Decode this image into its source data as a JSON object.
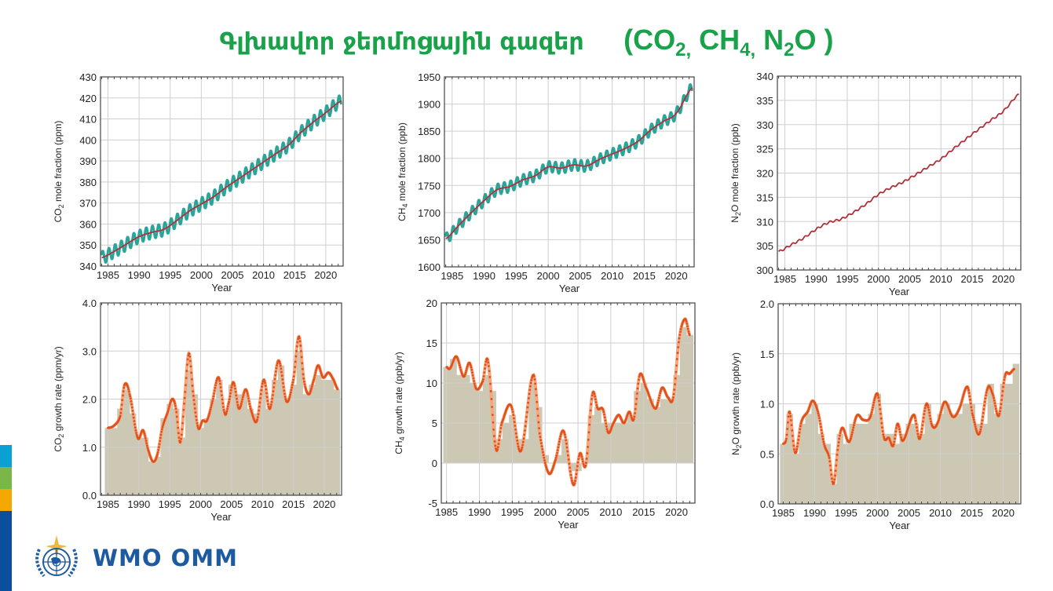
{
  "header": {
    "title_armenian": "Գլխավոր ջերմոցային գազեր",
    "formula_parts": [
      {
        "base": "(CO",
        "sub": "2,"
      },
      {
        "base": " CH",
        "sub": "4,"
      },
      {
        "base": " N",
        "sub": "2"
      },
      {
        "base": "O )",
        "sub": ""
      }
    ],
    "color": "#1aa24b"
  },
  "logo": {
    "text": "WMO OMM",
    "icon": "wmo-emblem-icon",
    "color": "#1e5aa0"
  },
  "side_stripes": [
    "#0aa0d2",
    "#7ab648",
    "#f5a800",
    "#0b4f9c"
  ],
  "colors": {
    "mole_points": "#2aa59a",
    "trend_line": "#b0303a",
    "growth_bars": "#ccc8b4",
    "growth_curve": "#e0501c"
  },
  "chart_data": [
    {
      "id": "co2-mole",
      "type": "line",
      "title": "",
      "xlabel": "Year",
      "ylabel": "CO2 mole fraction (ppm)",
      "ylabel_base": "CO",
      "ylabel_sub": "2",
      "ylabel_rest": " mole fraction (ppm)",
      "xlim": [
        1983.8,
        2022.8
      ],
      "ylim": [
        340,
        430
      ],
      "xticks": [
        1985,
        1990,
        1995,
        2000,
        2005,
        2010,
        2015,
        2020
      ],
      "yticks": [
        340,
        350,
        360,
        370,
        380,
        390,
        400,
        410,
        420,
        430
      ],
      "grid": true,
      "seasonal_amplitude": 3,
      "x": [
        1984,
        1986,
        1988,
        1990,
        1992,
        1994,
        1996,
        1998,
        2000,
        2002,
        2004,
        2006,
        2008,
        2010,
        2012,
        2014,
        2016,
        2018,
        2020,
        2022.5
      ],
      "values": [
        344.0,
        347.0,
        350.5,
        354.0,
        356.0,
        357.5,
        361.5,
        366.0,
        369.5,
        373.0,
        377.5,
        381.5,
        385.5,
        389.5,
        393.5,
        397.5,
        403.5,
        408.5,
        413.0,
        418.5
      ]
    },
    {
      "id": "ch4-mole",
      "type": "line",
      "title": "",
      "xlabel": "Year",
      "ylabel": "CH4 mole fraction (ppb)",
      "ylabel_base": "CH",
      "ylabel_sub": "4",
      "ylabel_rest": " mole fraction (ppb)",
      "xlim": [
        1983.8,
        2022.8
      ],
      "ylim": [
        1600,
        1950
      ],
      "xticks": [
        1985,
        1990,
        1995,
        2000,
        2005,
        2010,
        2015,
        2020
      ],
      "yticks": [
        1600,
        1650,
        1700,
        1750,
        1800,
        1850,
        1900,
        1950
      ],
      "grid": true,
      "seasonal_amplitude": 10,
      "x": [
        1984,
        1986,
        1988,
        1990,
        1992,
        1994,
        1996,
        1998,
        2000,
        2002,
        2004,
        2006,
        2008,
        2010,
        2012,
        2014,
        2016,
        2018,
        2020,
        2022.5
      ],
      "values": [
        1652,
        1676,
        1700,
        1722,
        1742,
        1748,
        1760,
        1768,
        1784,
        1782,
        1788,
        1786,
        1798,
        1808,
        1818,
        1831,
        1852,
        1868,
        1883,
        1930
      ]
    },
    {
      "id": "n2o-mole",
      "type": "line",
      "title": "",
      "xlabel": "Year",
      "ylabel": "N2O mole fraction (ppb)",
      "ylabel_base": "N",
      "ylabel_sub": "2",
      "ylabel_rest": "O mole fraction (ppb)",
      "xlim": [
        1983.8,
        2022.8
      ],
      "ylim": [
        300,
        340
      ],
      "xticks": [
        1985,
        1990,
        1995,
        2000,
        2005,
        2010,
        2015,
        2020
      ],
      "yticks": [
        300,
        305,
        310,
        315,
        320,
        325,
        330,
        335,
        340
      ],
      "grid": true,
      "seasonal_amplitude": 0.2,
      "x": [
        1984,
        1986,
        1988,
        1990,
        1992,
        1994,
        1996,
        1998,
        2000,
        2002,
        2004,
        2006,
        2008,
        2010,
        2012,
        2014,
        2016,
        2018,
        2020,
        2022.5
      ],
      "values": [
        303.8,
        305.2,
        306.6,
        308.4,
        309.8,
        310.5,
        311.9,
        313.6,
        315.6,
        317.0,
        318.2,
        319.7,
        321.3,
        322.9,
        325.0,
        327.0,
        329.0,
        330.9,
        332.8,
        336.2
      ]
    },
    {
      "id": "co2-growth",
      "type": "bar",
      "title": "",
      "xlabel": "Year",
      "ylabel": "CO2 growth rate (ppm/yr)",
      "ylabel_base": "CO",
      "ylabel_sub": "2",
      "ylabel_rest": " growth rate (ppm/yr)",
      "xlim": [
        1983.8,
        2022.8
      ],
      "ylim": [
        0,
        4
      ],
      "xticks": [
        1985,
        1990,
        1995,
        2000,
        2005,
        2010,
        2015,
        2020
      ],
      "yticks": [
        0.0,
        1.0,
        2.0,
        3.0,
        4.0
      ],
      "ytick_labels": [
        "0.0",
        "1.0",
        "2.0",
        "3.0",
        "4.0"
      ],
      "grid": true,
      "categories": [
        1985,
        1986,
        1987,
        1988,
        1989,
        1990,
        1991,
        1992,
        1993,
        1994,
        1995,
        1996,
        1997,
        1998,
        1999,
        2000,
        2001,
        2002,
        2003,
        2004,
        2005,
        2006,
        2007,
        2008,
        2009,
        2010,
        2011,
        2012,
        2013,
        2014,
        2015,
        2016,
        2017,
        2018,
        2019,
        2020,
        2021,
        2022
      ],
      "values": [
        1.4,
        1.4,
        1.8,
        2.2,
        1.7,
        1.2,
        1.2,
        0.7,
        0.8,
        1.6,
        1.9,
        1.8,
        1.2,
        2.6,
        2.1,
        1.4,
        1.6,
        2.0,
        2.4,
        1.7,
        2.3,
        2.1,
        2.1,
        1.8,
        1.7,
        2.2,
        1.8,
        2.4,
        2.7,
        2.0,
        2.3,
        3.0,
        2.1,
        2.3,
        2.5,
        2.4,
        2.4,
        2.2
      ],
      "curve_x": [
        1985,
        1986,
        1987,
        1987.7,
        1988.5,
        1989.8,
        1990.7,
        1991.5,
        1992.3,
        1993,
        1993.8,
        1994.6,
        1995.4,
        1996,
        1996.7,
        1997.4,
        1998.1,
        1998.8,
        1999.6,
        2000.3,
        2001,
        2001.8,
        2002.9,
        2003.9,
        2004.5,
        2005.3,
        2006.2,
        2007.3,
        2008.2,
        2009.1,
        2010.2,
        2011.2,
        2012.6,
        2013.9,
        2015,
        2015.9,
        2016.7,
        2017.5,
        2018.3,
        2019,
        2019.8,
        2020.7,
        2021.5,
        2022.2
      ],
      "curve_y": [
        1.4,
        1.45,
        1.65,
        2.3,
        2.1,
        1.2,
        1.35,
        0.95,
        0.7,
        0.85,
        1.4,
        1.7,
        2.0,
        1.8,
        1.1,
        2.0,
        2.95,
        2.1,
        1.4,
        1.55,
        1.55,
        1.9,
        2.45,
        1.7,
        1.9,
        2.35,
        1.8,
        2.2,
        1.75,
        1.55,
        2.4,
        1.8,
        2.8,
        1.95,
        2.4,
        3.3,
        2.4,
        2.1,
        2.4,
        2.7,
        2.45,
        2.55,
        2.4,
        2.2
      ]
    },
    {
      "id": "ch4-growth",
      "type": "bar",
      "title": "",
      "xlabel": "Year",
      "ylabel": "CH4 growth rate (ppb/yr)",
      "ylabel_base": "CH",
      "ylabel_sub": "4",
      "ylabel_rest": " growth rate (ppb/yr)",
      "xlim": [
        1984.2,
        2022.8
      ],
      "ylim": [
        -5,
        20
      ],
      "xticks": [
        1985,
        1990,
        1995,
        2000,
        2005,
        2010,
        2015,
        2020
      ],
      "yticks": [
        -5,
        0,
        5,
        10,
        15,
        20
      ],
      "ytick_labels": [
        "-5",
        "0",
        "5",
        "10",
        "15",
        "20"
      ],
      "grid": true,
      "categories": [
        1985,
        1986,
        1987,
        1988,
        1989,
        1990,
        1991,
        1992,
        1993,
        1994,
        1995,
        1996,
        1997,
        1998,
        1999,
        2000,
        2001,
        2002,
        2003,
        2004,
        2005,
        2006,
        2007,
        2008,
        2009,
        2010,
        2011,
        2012,
        2013,
        2014,
        2015,
        2016,
        2017,
        2018,
        2019,
        2020,
        2021,
        2022
      ],
      "values": [
        12,
        13,
        11,
        11,
        10,
        9,
        11,
        9,
        3,
        5,
        6,
        3,
        3,
        10,
        7,
        1,
        0,
        1,
        3,
        -1,
        -1,
        0,
        6,
        7,
        5,
        5,
        5,
        5,
        6,
        9,
        10,
        8,
        7,
        8,
        8,
        11,
        17,
        16
      ],
      "curve_x": [
        1985,
        1985.5,
        1986.5,
        1987.6,
        1988.5,
        1989.5,
        1990.5,
        1991.3,
        1992.5,
        1993.4,
        1994.8,
        1996.3,
        1998.2,
        1999.2,
        2000.5,
        2001.5,
        2002.8,
        2004.3,
        2005.3,
        2006.2,
        2007.2,
        2008,
        2008.8,
        2009.6,
        2010.4,
        2011.2,
        2012,
        2012.8,
        2013.5,
        2014.4,
        2015.3,
        2016.8,
        2017.8,
        2018.7,
        2019.5,
        2020.4,
        2021.3,
        2022
      ],
      "curve_y": [
        12,
        11.8,
        13.3,
        10.8,
        12.5,
        9.3,
        10.2,
        12.7,
        1.8,
        5.0,
        7.2,
        1.5,
        11.0,
        3.5,
        -1.2,
        0.2,
        4.0,
        -2.7,
        1.2,
        -0.2,
        8.6,
        6.8,
        6.7,
        3.8,
        5.0,
        6.0,
        5.0,
        6.4,
        5.5,
        11.0,
        9.5,
        6.8,
        9.4,
        8.2,
        8.2,
        15.5,
        18.0,
        16.0
      ]
    },
    {
      "id": "n2o-growth",
      "type": "bar",
      "title": "",
      "xlabel": "Year",
      "ylabel": "N2O growth rate (ppb/yr)",
      "ylabel_base": "N",
      "ylabel_sub": "2",
      "ylabel_rest": "O growth rate (ppb/yr)",
      "xlim": [
        1984.2,
        2022.8
      ],
      "ylim": [
        0,
        2
      ],
      "xticks": [
        1985,
        1990,
        1995,
        2000,
        2005,
        2010,
        2015,
        2020
      ],
      "yticks": [
        0.0,
        0.5,
        1.0,
        1.5,
        2.0
      ],
      "ytick_labels": [
        "0.0",
        "0.5",
        "1.0",
        "1.5",
        "2.0"
      ],
      "grid": true,
      "categories": [
        1985,
        1986,
        1987,
        1988,
        1989,
        1990,
        1991,
        1992,
        1993,
        1994,
        1995,
        1996,
        1997,
        1998,
        1999,
        2000,
        2001,
        2002,
        2003,
        2004,
        2005,
        2006,
        2007,
        2008,
        2009,
        2010,
        2011,
        2012,
        2013,
        2014,
        2015,
        2016,
        2017,
        2018,
        2019,
        2020,
        2021,
        2022
      ],
      "values": [
        0.6,
        0.9,
        0.5,
        0.8,
        0.9,
        1.0,
        0.7,
        0.6,
        0.2,
        0.7,
        0.6,
        0.8,
        0.8,
        0.8,
        0.9,
        1.1,
        0.7,
        0.7,
        0.6,
        0.7,
        0.8,
        0.8,
        0.7,
        1.0,
        0.8,
        0.9,
        1.0,
        0.9,
        0.9,
        1.0,
        1.0,
        0.8,
        0.8,
        1.2,
        0.9,
        1.2,
        1.2,
        1.4
      ],
      "curve_x": [
        1985,
        1985.5,
        1986,
        1986.9,
        1987.9,
        1988.9,
        1989.7,
        1990.6,
        1991.5,
        1992.3,
        1993,
        1993.8,
        1994.4,
        1995.5,
        1996.7,
        1997.7,
        1998.8,
        2000,
        2001,
        2001.8,
        2002.5,
        2003.2,
        2004,
        2005.8,
        2006.7,
        2007.8,
        2008.7,
        2009.5,
        2010.7,
        2012,
        2013,
        2014.3,
        2015.1,
        2016.2,
        2017.5,
        2018.3,
        2019.3,
        2020.3,
        2021,
        2021.8
      ],
      "curve_y": [
        0.6,
        0.65,
        0.92,
        0.51,
        0.82,
        0.92,
        1.03,
        0.9,
        0.6,
        0.47,
        0.2,
        0.6,
        0.76,
        0.62,
        0.88,
        0.84,
        0.86,
        1.1,
        0.67,
        0.66,
        0.58,
        0.8,
        0.63,
        0.89,
        0.65,
        1.0,
        0.78,
        0.8,
        1.02,
        0.87,
        0.95,
        1.17,
        0.9,
        0.7,
        1.15,
        1.1,
        0.88,
        1.28,
        1.3,
        1.35
      ]
    }
  ]
}
